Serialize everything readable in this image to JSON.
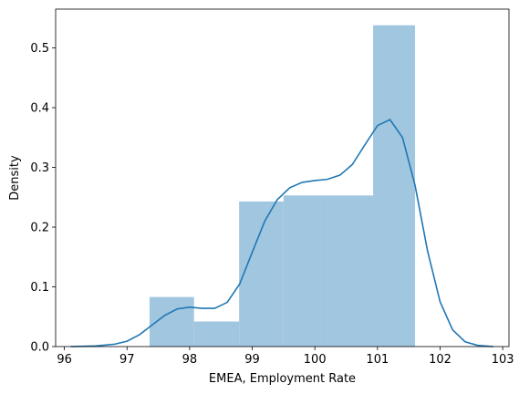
{
  "chart_data": {
    "type": "bar",
    "title": "",
    "xlabel": "EMEA, Employment Rate",
    "ylabel": "Density",
    "xlim": [
      95.86,
      103.1
    ],
    "ylim": [
      0,
      0.565
    ],
    "xticks": [
      96,
      97,
      98,
      99,
      100,
      101,
      102,
      103
    ],
    "yticks": [
      0.0,
      0.1,
      0.2,
      0.3,
      0.4,
      0.5
    ],
    "histogram": {
      "bins": [
        {
          "x0": 97.36,
          "x1": 98.07,
          "density": 0.083
        },
        {
          "x0": 98.07,
          "x1": 98.79,
          "density": 0.042
        },
        {
          "x0": 98.79,
          "x1": 99.5,
          "density": 0.243
        },
        {
          "x0": 99.5,
          "x1": 100.21,
          "density": 0.253
        },
        {
          "x0": 100.21,
          "x1": 100.93,
          "density": 0.253
        },
        {
          "x0": 100.93,
          "x1": 101.6,
          "density": 0.538
        }
      ],
      "color": "#a1c6e0"
    },
    "kde": {
      "color": "#1f77b4",
      "points": [
        [
          96.1,
          0.0
        ],
        [
          96.5,
          0.001
        ],
        [
          96.8,
          0.004
        ],
        [
          97.0,
          0.009
        ],
        [
          97.2,
          0.02
        ],
        [
          97.4,
          0.036
        ],
        [
          97.6,
          0.052
        ],
        [
          97.8,
          0.063
        ],
        [
          98.0,
          0.066
        ],
        [
          98.2,
          0.064
        ],
        [
          98.4,
          0.064
        ],
        [
          98.6,
          0.074
        ],
        [
          98.8,
          0.105
        ],
        [
          99.0,
          0.158
        ],
        [
          99.2,
          0.21
        ],
        [
          99.4,
          0.246
        ],
        [
          99.6,
          0.266
        ],
        [
          99.8,
          0.275
        ],
        [
          100.0,
          0.278
        ],
        [
          100.2,
          0.28
        ],
        [
          100.4,
          0.287
        ],
        [
          100.6,
          0.305
        ],
        [
          100.8,
          0.338
        ],
        [
          101.0,
          0.37
        ],
        [
          101.2,
          0.38
        ],
        [
          101.4,
          0.35
        ],
        [
          101.6,
          0.27
        ],
        [
          101.8,
          0.16
        ],
        [
          102.0,
          0.075
        ],
        [
          102.2,
          0.028
        ],
        [
          102.4,
          0.008
        ],
        [
          102.6,
          0.002
        ],
        [
          102.85,
          0.0
        ]
      ]
    }
  }
}
